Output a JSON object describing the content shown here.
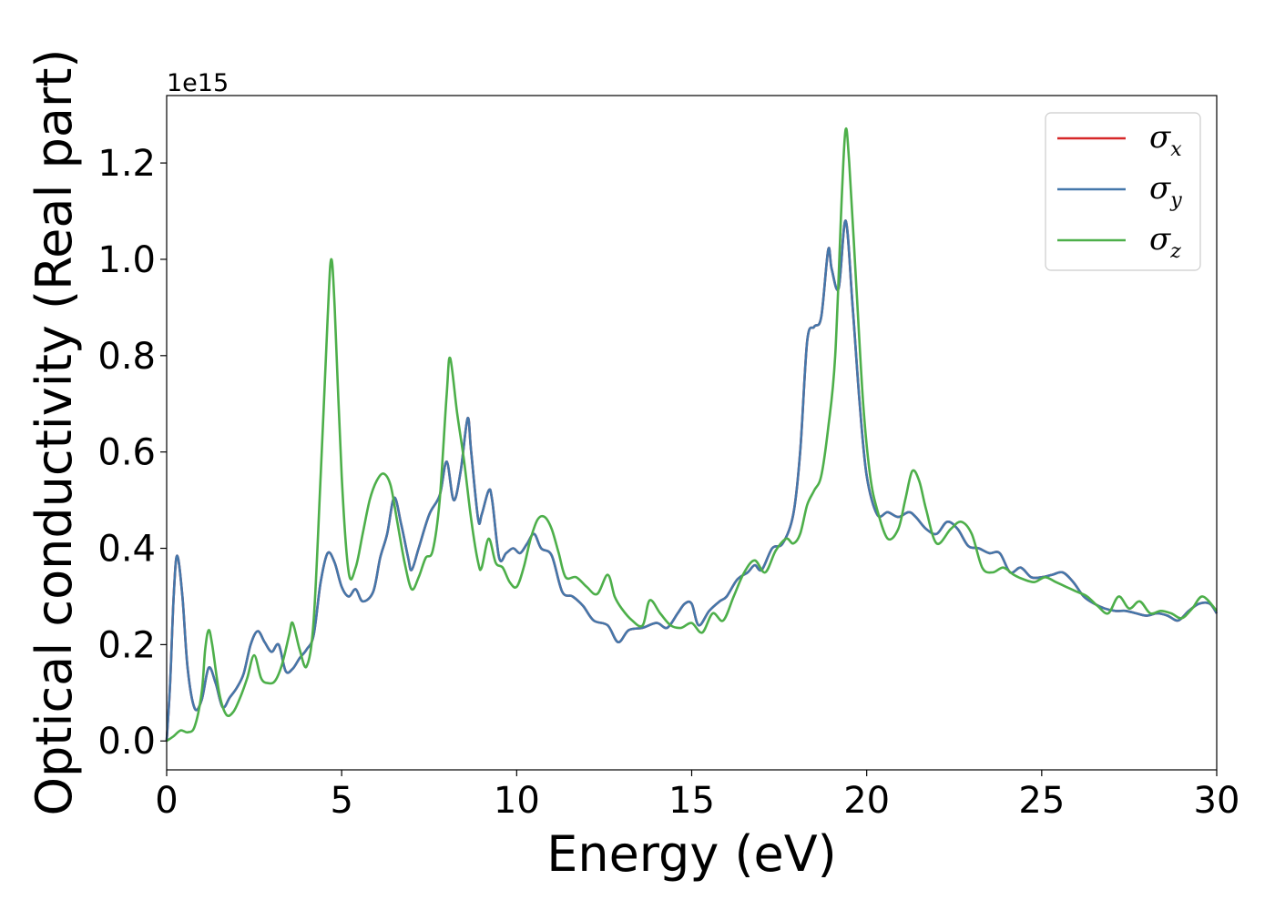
{
  "chart_data": {
    "type": "line",
    "xlabel": "Energy (eV)",
    "ylabel": "Optical conductivity (Real part)",
    "y_offset_label": "1e15",
    "xlim": [
      0,
      30
    ],
    "ylim": [
      -0.06,
      1.34
    ],
    "xticks": [
      0,
      5,
      10,
      15,
      20,
      25,
      30
    ],
    "xtick_labels": [
      "0",
      "5",
      "10",
      "15",
      "20",
      "25",
      "30"
    ],
    "yticks": [
      0.0,
      0.2,
      0.4,
      0.6,
      0.8,
      1.0,
      1.2
    ],
    "ytick_labels": [
      "0.0",
      "0.2",
      "0.4",
      "0.6",
      "0.8",
      "1.0",
      "1.2"
    ],
    "grid": false,
    "legend_position": "top-right",
    "series": [
      {
        "name": "σ",
        "subscript": "x",
        "color": "#d62728",
        "x": [
          0,
          0.1,
          0.2,
          0.3,
          0.45,
          0.6,
          0.8,
          1.0,
          1.2,
          1.4,
          1.6,
          1.8,
          2.0,
          2.2,
          2.4,
          2.6,
          2.8,
          3.0,
          3.2,
          3.4,
          3.6,
          3.8,
          4.0,
          4.2,
          4.4,
          4.6,
          4.8,
          5.0,
          5.2,
          5.4,
          5.6,
          5.9,
          6.1,
          6.3,
          6.5,
          6.7,
          6.9,
          7.0,
          7.2,
          7.5,
          7.8,
          8.0,
          8.2,
          8.4,
          8.6,
          8.7,
          8.9,
          9.0,
          9.2,
          9.3,
          9.5,
          9.7,
          9.9,
          10.1,
          10.3,
          10.5,
          10.7,
          11.0,
          11.3,
          11.6,
          11.9,
          12.2,
          12.6,
          12.9,
          13.2,
          13.6,
          14.0,
          14.3,
          14.6,
          14.8,
          15.0,
          15.2,
          15.5,
          15.8,
          16.0,
          16.3,
          16.6,
          16.8,
          17.0,
          17.3,
          17.6,
          17.9,
          18.1,
          18.3,
          18.5,
          18.7,
          18.9,
          19.0,
          19.2,
          19.4,
          19.6,
          19.8,
          20.0,
          20.3,
          20.6,
          20.9,
          21.2,
          21.4,
          21.7,
          22.0,
          22.3,
          22.6,
          22.9,
          23.2,
          23.5,
          23.8,
          24.1,
          24.4,
          24.7,
          25.0,
          25.3,
          25.6,
          25.9,
          26.2,
          26.5,
          26.8,
          27.1,
          27.4,
          27.7,
          28.0,
          28.3,
          28.6,
          28.9,
          29.2,
          29.5,
          29.8,
          30.0
        ],
        "y": [
          0,
          0.12,
          0.3,
          0.385,
          0.3,
          0.15,
          0.068,
          0.085,
          0.152,
          0.12,
          0.07,
          0.09,
          0.11,
          0.14,
          0.2,
          0.228,
          0.205,
          0.185,
          0.2,
          0.145,
          0.15,
          0.172,
          0.19,
          0.22,
          0.33,
          0.39,
          0.37,
          0.32,
          0.3,
          0.315,
          0.29,
          0.31,
          0.38,
          0.43,
          0.505,
          0.45,
          0.38,
          0.355,
          0.4,
          0.47,
          0.51,
          0.58,
          0.5,
          0.56,
          0.67,
          0.6,
          0.46,
          0.47,
          0.52,
          0.5,
          0.38,
          0.39,
          0.4,
          0.39,
          0.41,
          0.43,
          0.4,
          0.385,
          0.31,
          0.3,
          0.28,
          0.25,
          0.24,
          0.205,
          0.23,
          0.235,
          0.245,
          0.235,
          0.265,
          0.285,
          0.285,
          0.24,
          0.27,
          0.29,
          0.3,
          0.335,
          0.35,
          0.365,
          0.355,
          0.4,
          0.41,
          0.47,
          0.6,
          0.83,
          0.86,
          0.88,
          1.02,
          0.98,
          0.94,
          1.08,
          0.9,
          0.7,
          0.55,
          0.47,
          0.475,
          0.465,
          0.475,
          0.465,
          0.44,
          0.43,
          0.455,
          0.44,
          0.405,
          0.4,
          0.39,
          0.39,
          0.35,
          0.36,
          0.34,
          0.34,
          0.345,
          0.35,
          0.33,
          0.3,
          0.285,
          0.275,
          0.27,
          0.27,
          0.265,
          0.26,
          0.265,
          0.26,
          0.25,
          0.27,
          0.285,
          0.285,
          0.265
        ]
      },
      {
        "name": "σ",
        "subscript": "y",
        "color": "#4477aa",
        "x": [
          0,
          0.1,
          0.2,
          0.3,
          0.45,
          0.6,
          0.8,
          1.0,
          1.2,
          1.4,
          1.6,
          1.8,
          2.0,
          2.2,
          2.4,
          2.6,
          2.8,
          3.0,
          3.2,
          3.4,
          3.6,
          3.8,
          4.0,
          4.2,
          4.4,
          4.6,
          4.8,
          5.0,
          5.2,
          5.4,
          5.6,
          5.9,
          6.1,
          6.3,
          6.5,
          6.7,
          6.9,
          7.0,
          7.2,
          7.5,
          7.8,
          8.0,
          8.2,
          8.4,
          8.6,
          8.7,
          8.9,
          9.0,
          9.2,
          9.3,
          9.5,
          9.7,
          9.9,
          10.1,
          10.3,
          10.5,
          10.7,
          11.0,
          11.3,
          11.6,
          11.9,
          12.2,
          12.6,
          12.9,
          13.2,
          13.6,
          14.0,
          14.3,
          14.6,
          14.8,
          15.0,
          15.2,
          15.5,
          15.8,
          16.0,
          16.3,
          16.6,
          16.8,
          17.0,
          17.3,
          17.6,
          17.9,
          18.1,
          18.3,
          18.5,
          18.7,
          18.9,
          19.0,
          19.2,
          19.4,
          19.6,
          19.8,
          20.0,
          20.3,
          20.6,
          20.9,
          21.2,
          21.4,
          21.7,
          22.0,
          22.3,
          22.6,
          22.9,
          23.2,
          23.5,
          23.8,
          24.1,
          24.4,
          24.7,
          25.0,
          25.3,
          25.6,
          25.9,
          26.2,
          26.5,
          26.8,
          27.1,
          27.4,
          27.7,
          28.0,
          28.3,
          28.6,
          28.9,
          29.2,
          29.5,
          29.8,
          30.0
        ],
        "y": [
          0,
          0.12,
          0.3,
          0.385,
          0.3,
          0.15,
          0.068,
          0.085,
          0.152,
          0.12,
          0.07,
          0.09,
          0.11,
          0.14,
          0.2,
          0.228,
          0.205,
          0.185,
          0.2,
          0.145,
          0.15,
          0.172,
          0.19,
          0.22,
          0.33,
          0.39,
          0.37,
          0.32,
          0.3,
          0.315,
          0.29,
          0.31,
          0.38,
          0.43,
          0.505,
          0.45,
          0.38,
          0.355,
          0.4,
          0.47,
          0.51,
          0.58,
          0.5,
          0.56,
          0.67,
          0.6,
          0.46,
          0.47,
          0.52,
          0.5,
          0.38,
          0.39,
          0.4,
          0.39,
          0.41,
          0.43,
          0.4,
          0.385,
          0.31,
          0.3,
          0.28,
          0.25,
          0.24,
          0.205,
          0.23,
          0.235,
          0.245,
          0.235,
          0.265,
          0.285,
          0.285,
          0.24,
          0.27,
          0.29,
          0.3,
          0.335,
          0.35,
          0.365,
          0.355,
          0.4,
          0.41,
          0.47,
          0.6,
          0.83,
          0.86,
          0.88,
          1.02,
          0.98,
          0.94,
          1.08,
          0.9,
          0.7,
          0.55,
          0.47,
          0.475,
          0.465,
          0.475,
          0.465,
          0.44,
          0.43,
          0.455,
          0.44,
          0.405,
          0.4,
          0.39,
          0.39,
          0.35,
          0.36,
          0.34,
          0.34,
          0.345,
          0.35,
          0.33,
          0.3,
          0.285,
          0.275,
          0.27,
          0.27,
          0.265,
          0.26,
          0.265,
          0.26,
          0.25,
          0.27,
          0.285,
          0.285,
          0.265
        ]
      },
      {
        "name": "σ",
        "subscript": "z",
        "color": "#4daf4a",
        "x": [
          0,
          0.2,
          0.4,
          0.6,
          0.8,
          1.0,
          1.1,
          1.2,
          1.3,
          1.5,
          1.7,
          1.9,
          2.1,
          2.3,
          2.5,
          2.7,
          2.9,
          3.1,
          3.3,
          3.5,
          3.6,
          3.8,
          4.0,
          4.2,
          4.4,
          4.6,
          4.7,
          4.8,
          5.0,
          5.2,
          5.4,
          5.6,
          5.8,
          6.0,
          6.2,
          6.4,
          6.6,
          6.8,
          7.0,
          7.2,
          7.4,
          7.6,
          7.8,
          8.0,
          8.1,
          8.3,
          8.5,
          8.7,
          8.9,
          9.0,
          9.2,
          9.4,
          9.6,
          9.8,
          10.0,
          10.2,
          10.4,
          10.6,
          10.8,
          11.0,
          11.2,
          11.4,
          11.7,
          12.0,
          12.3,
          12.6,
          12.8,
          13.0,
          13.3,
          13.6,
          13.8,
          14.1,
          14.4,
          14.7,
          15.0,
          15.3,
          15.6,
          15.9,
          16.2,
          16.5,
          16.8,
          17.1,
          17.4,
          17.7,
          17.9,
          18.1,
          18.3,
          18.5,
          18.7,
          18.9,
          19.1,
          19.3,
          19.4,
          19.5,
          19.7,
          19.9,
          20.1,
          20.3,
          20.6,
          20.9,
          21.1,
          21.3,
          21.5,
          21.7,
          22.0,
          22.4,
          22.7,
          23.0,
          23.3,
          23.6,
          23.9,
          24.2,
          24.5,
          24.8,
          25.1,
          25.4,
          25.7,
          26.0,
          26.3,
          26.6,
          26.9,
          27.2,
          27.5,
          27.8,
          28.1,
          28.4,
          28.7,
          29.0,
          29.3,
          29.6,
          30.0
        ],
        "y": [
          0,
          0.01,
          0.022,
          0.018,
          0.03,
          0.1,
          0.19,
          0.23,
          0.2,
          0.1,
          0.055,
          0.06,
          0.09,
          0.13,
          0.178,
          0.13,
          0.12,
          0.125,
          0.16,
          0.22,
          0.245,
          0.19,
          0.155,
          0.25,
          0.55,
          0.88,
          1.0,
          0.9,
          0.55,
          0.35,
          0.36,
          0.43,
          0.5,
          0.54,
          0.555,
          0.53,
          0.45,
          0.37,
          0.315,
          0.34,
          0.38,
          0.395,
          0.5,
          0.72,
          0.795,
          0.68,
          0.58,
          0.46,
          0.37,
          0.36,
          0.42,
          0.37,
          0.36,
          0.33,
          0.32,
          0.36,
          0.42,
          0.46,
          0.465,
          0.44,
          0.39,
          0.34,
          0.34,
          0.32,
          0.305,
          0.345,
          0.3,
          0.275,
          0.25,
          0.24,
          0.292,
          0.265,
          0.24,
          0.235,
          0.245,
          0.225,
          0.265,
          0.25,
          0.3,
          0.35,
          0.375,
          0.35,
          0.395,
          0.42,
          0.41,
          0.43,
          0.49,
          0.52,
          0.55,
          0.65,
          0.8,
          1.15,
          1.27,
          1.2,
          0.95,
          0.7,
          0.55,
          0.48,
          0.42,
          0.44,
          0.5,
          0.56,
          0.54,
          0.48,
          0.41,
          0.44,
          0.455,
          0.43,
          0.36,
          0.35,
          0.36,
          0.345,
          0.335,
          0.33,
          0.34,
          0.33,
          0.32,
          0.31,
          0.3,
          0.28,
          0.265,
          0.3,
          0.275,
          0.29,
          0.265,
          0.27,
          0.265,
          0.255,
          0.275,
          0.3,
          0.27
        ]
      }
    ]
  }
}
